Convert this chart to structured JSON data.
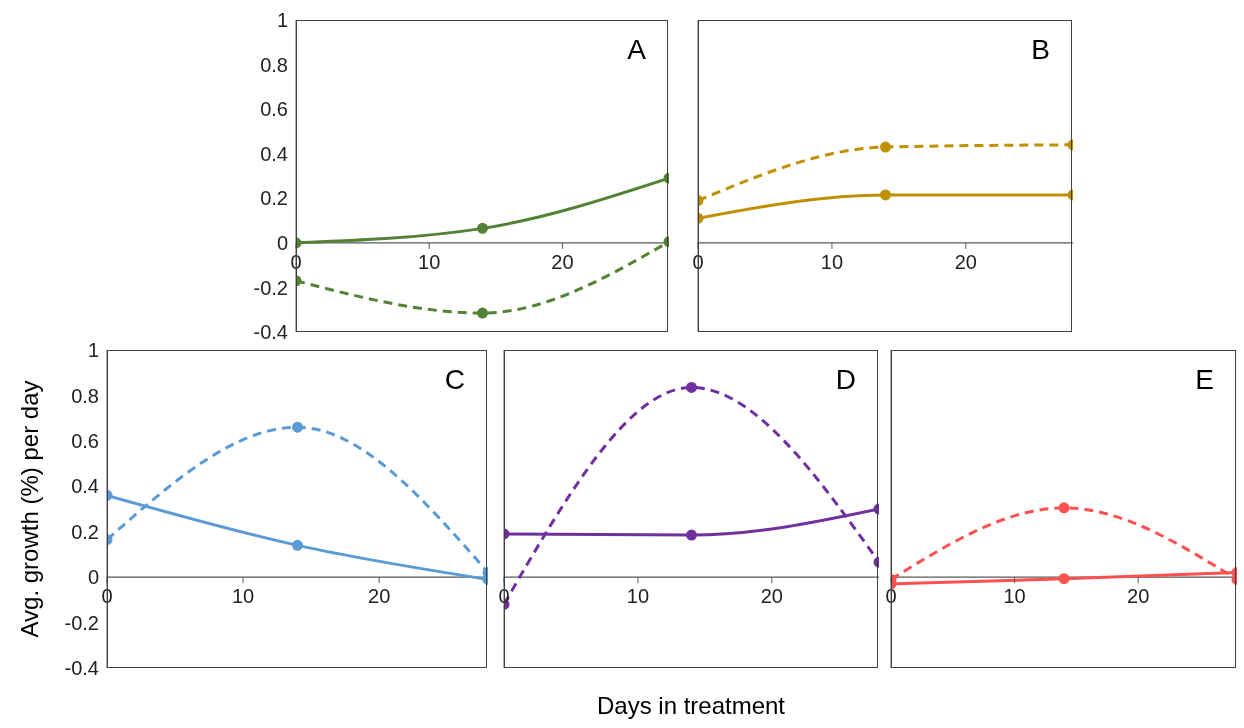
{
  "chart_data": [
    {
      "type": "line",
      "title": "A",
      "x": [
        0,
        14,
        28
      ],
      "xlim": [
        0,
        28
      ],
      "xticks": [
        0,
        10,
        20
      ],
      "ylim": [
        -0.4,
        1
      ],
      "yticks": [
        -0.4,
        -0.2,
        0,
        0.2,
        0.4,
        0.6,
        0.8,
        1
      ],
      "marker": "circle",
      "grid": false,
      "series": [
        {
          "color": "#548235",
          "line_style": "solid",
          "values": [
            0,
            0.065,
            0.29
          ]
        },
        {
          "color": "#548235",
          "line_style": "dashed",
          "values": [
            -0.17,
            -0.315,
            0.005
          ]
        }
      ]
    },
    {
      "type": "line",
      "title": "B",
      "x": [
        0,
        14,
        28
      ],
      "xlim": [
        0,
        28
      ],
      "xticks": [
        0,
        10,
        20
      ],
      "ylim": [
        -0.4,
        1
      ],
      "yticks": [
        -0.4,
        -0.2,
        0,
        0.2,
        0.4,
        0.6,
        0.8,
        1
      ],
      "tick_labels": "x",
      "marker": "circle",
      "grid": false,
      "series": [
        {
          "color": "#bf9000",
          "line_style": "solid",
          "values": [
            0.11,
            0.215,
            0.215
          ]
        },
        {
          "color": "#bf9000",
          "line_style": "dashed",
          "values": [
            0.19,
            0.43,
            0.44
          ]
        }
      ]
    },
    {
      "type": "line",
      "title": "C",
      "ylabel": "Avg. growth (%) per day",
      "x": [
        0,
        14,
        28
      ],
      "xlim": [
        0,
        28
      ],
      "xticks": [
        0,
        10,
        20
      ],
      "ylim": [
        -0.4,
        1
      ],
      "yticks": [
        -0.4,
        -0.2,
        0,
        0.2,
        0.4,
        0.6,
        0.8,
        1
      ],
      "marker": "circle",
      "grid": false,
      "series": [
        {
          "color": "#5b9bd5",
          "line_style": "solid",
          "values": [
            0.36,
            0.14,
            -0.01
          ]
        },
        {
          "color": "#5b9bd5",
          "line_style": "dashed",
          "values": [
            0.165,
            0.66,
            0.02
          ]
        }
      ]
    },
    {
      "type": "line",
      "title": "D",
      "xlabel": "Days in treatment",
      "x": [
        0,
        14,
        28
      ],
      "xlim": [
        0,
        28
      ],
      "xticks": [
        0,
        10,
        20
      ],
      "ylim": [
        -0.4,
        1
      ],
      "yticks": [
        -0.4,
        -0.2,
        0,
        0.2,
        0.4,
        0.6,
        0.8,
        1
      ],
      "tick_labels": "x",
      "marker": "circle",
      "grid": false,
      "series": [
        {
          "color": "#7030a0",
          "line_style": "solid",
          "values": [
            0.19,
            0.185,
            0.3
          ]
        },
        {
          "color": "#7030a0",
          "line_style": "dashed",
          "values": [
            -0.12,
            0.835,
            0.066
          ]
        }
      ]
    },
    {
      "type": "line",
      "title": "E",
      "x": [
        0,
        14,
        28
      ],
      "xlim": [
        0,
        28
      ],
      "xticks": [
        0,
        10,
        20
      ],
      "ylim": [
        -0.4,
        1
      ],
      "yticks": [
        -0.4,
        -0.2,
        0,
        0.2,
        0.4,
        0.6,
        0.8,
        1
      ],
      "tick_labels": "x",
      "marker": "circle",
      "grid": false,
      "series": [
        {
          "color": "#ff5050",
          "line_style": "solid",
          "values": [
            -0.03,
            -0.007,
            0.02
          ]
        },
        {
          "color": "#ff5050",
          "line_style": "dashed",
          "values": [
            -0.01,
            0.305,
            -0.01
          ]
        }
      ]
    }
  ]
}
